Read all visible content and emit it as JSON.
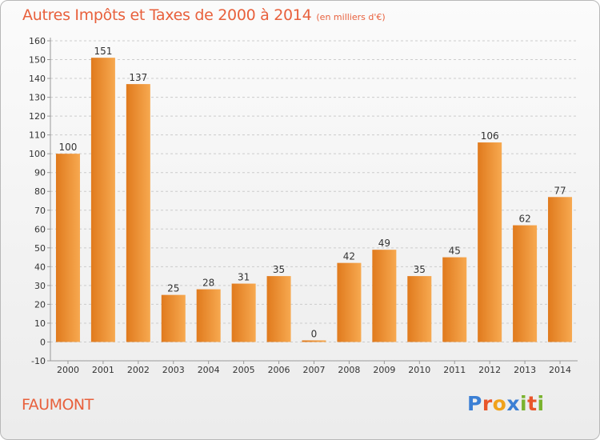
{
  "header": {
    "title": "Autres Impôts et Taxes de 2000 à 2014",
    "subtitle": "(en milliers d'€)"
  },
  "footer": {
    "place": "FAUMONT",
    "logo_letters": [
      "P",
      "r",
      "o",
      "x",
      "i",
      "t",
      "i"
    ],
    "logo_colors": [
      "#3b7fd4",
      "#e8552a",
      "#f0a21b",
      "#3b7fd4",
      "#7ab32e",
      "#e8552a",
      "#7ab32e"
    ]
  },
  "colors": {
    "bar_light": "#f7a950",
    "bar_dark": "#e07a1d",
    "grid": "#cccccc",
    "axis": "#999999",
    "title": "#e8603c"
  },
  "chart_data": {
    "type": "bar",
    "categories": [
      "2000",
      "2001",
      "2002",
      "2003",
      "2004",
      "2005",
      "2006",
      "2007",
      "2008",
      "2009",
      "2010",
      "2011",
      "2012",
      "2013",
      "2014"
    ],
    "values": [
      100,
      151,
      137,
      25,
      28,
      31,
      35,
      0,
      42,
      49,
      35,
      45,
      106,
      62,
      77
    ],
    "data_labels": [
      "100",
      "151",
      "137",
      "25",
      "28",
      "31",
      "35",
      "0",
      "42",
      "49",
      "35",
      "45",
      "106",
      "62",
      "77"
    ],
    "ylim": [
      -10,
      160
    ],
    "yticks": [
      -10,
      0,
      10,
      20,
      30,
      40,
      50,
      60,
      70,
      80,
      90,
      100,
      110,
      120,
      130,
      140,
      150,
      160
    ],
    "ytick_labels": [
      "-10",
      "0",
      "10",
      "20",
      "30",
      "40",
      "50",
      "60",
      "70",
      "80",
      "90",
      "100",
      "110",
      "120",
      "130",
      "140",
      "150",
      "160"
    ],
    "grid": true,
    "xlabel": "",
    "ylabel": ""
  }
}
